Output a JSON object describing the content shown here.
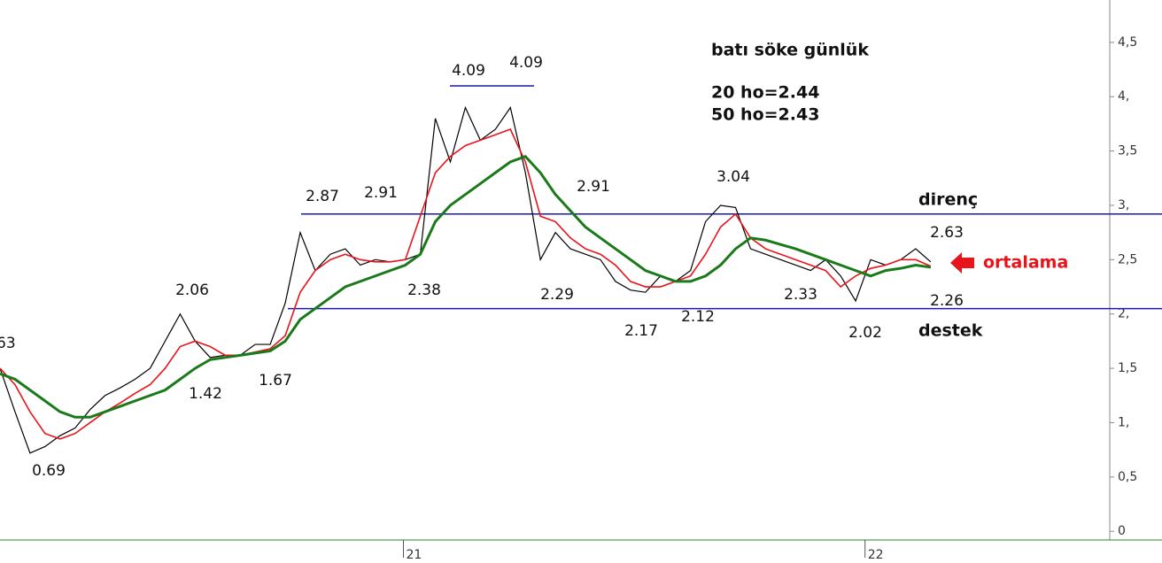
{
  "chart_data": {
    "type": "line",
    "title": "batı söke günlük",
    "subtitle": [
      "20 ho=2.44",
      "50 ho=2.43"
    ],
    "x": [
      0,
      8,
      16,
      24,
      32,
      40,
      48,
      56,
      64,
      72,
      80,
      88,
      96,
      104,
      112,
      120,
      128,
      136,
      144,
      152,
      160,
      168,
      176,
      184,
      192,
      200,
      208,
      216,
      224,
      232,
      240,
      248,
      256,
      264,
      272,
      280,
      288,
      296,
      304,
      312,
      320,
      328,
      336,
      344,
      352,
      360,
      368,
      376,
      384,
      392,
      400,
      408,
      416,
      424,
      432,
      440,
      448,
      456,
      464,
      472,
      480,
      488,
      496
    ],
    "series": [
      {
        "color": "#000000",
        "values": [
          1.5,
          1.1,
          0.72,
          0.78,
          0.88,
          0.95,
          1.12,
          1.25,
          1.32,
          1.4,
          1.5,
          1.75,
          2.0,
          1.75,
          1.6,
          1.62,
          1.62,
          1.72,
          1.72,
          2.1,
          2.75,
          2.4,
          2.55,
          2.6,
          2.45,
          2.5,
          2.48,
          2.5,
          2.55,
          3.8,
          3.4,
          3.9,
          3.6,
          3.7,
          3.9,
          3.3,
          2.5,
          2.75,
          2.6,
          2.55,
          2.5,
          2.3,
          2.22,
          2.2,
          2.35,
          2.3,
          2.4,
          2.85,
          3.0,
          2.98,
          2.6,
          2.55,
          2.5,
          2.45,
          2.4,
          2.5,
          2.35,
          2.12,
          2.5,
          2.45,
          2.5,
          2.6,
          2.48
        ]
      },
      {
        "color": "#e8141b",
        "values": [
          1.5,
          1.35,
          1.1,
          0.9,
          0.85,
          0.9,
          1.0,
          1.1,
          1.18,
          1.27,
          1.35,
          1.5,
          1.7,
          1.75,
          1.7,
          1.62,
          1.62,
          1.65,
          1.68,
          1.8,
          2.2,
          2.4,
          2.5,
          2.55,
          2.5,
          2.48,
          2.48,
          2.5,
          2.9,
          3.3,
          3.45,
          3.55,
          3.6,
          3.65,
          3.7,
          3.4,
          2.9,
          2.85,
          2.7,
          2.6,
          2.55,
          2.45,
          2.3,
          2.25,
          2.25,
          2.3,
          2.35,
          2.55,
          2.8,
          2.92,
          2.7,
          2.6,
          2.55,
          2.5,
          2.45,
          2.4,
          2.25,
          2.35,
          2.42,
          2.45,
          2.5,
          2.5,
          2.44
        ]
      },
      {
        "color": "#1a7a1a",
        "values": [
          1.45,
          1.4,
          1.3,
          1.2,
          1.1,
          1.05,
          1.05,
          1.1,
          1.15,
          1.2,
          1.25,
          1.3,
          1.4,
          1.5,
          1.58,
          1.6,
          1.62,
          1.64,
          1.66,
          1.75,
          1.95,
          2.05,
          2.15,
          2.25,
          2.3,
          2.35,
          2.4,
          2.45,
          2.55,
          2.85,
          3.0,
          3.1,
          3.2,
          3.3,
          3.4,
          3.45,
          3.3,
          3.1,
          2.95,
          2.8,
          2.7,
          2.6,
          2.5,
          2.4,
          2.35,
          2.3,
          2.3,
          2.35,
          2.45,
          2.6,
          2.7,
          2.68,
          2.64,
          2.6,
          2.55,
          2.5,
          2.45,
          2.4,
          2.35,
          2.4,
          2.42,
          2.45,
          2.43
        ]
      }
    ],
    "xlim": [
      0,
      590
    ],
    "xticks": [
      {
        "value": 215,
        "label": "21"
      },
      {
        "value": 461,
        "label": "22"
      }
    ],
    "ylim": [
      -0.08,
      4.89
    ],
    "yticks": [
      0,
      {
        "value": 0.5,
        "label": "0,5"
      },
      {
        "value": 1,
        "label": "1,"
      },
      {
        "value": 1.5,
        "label": "1,5"
      },
      {
        "value": 2,
        "label": "2,"
      },
      {
        "value": 2.5,
        "label": "2,5"
      },
      {
        "value": 3,
        "label": "3,"
      },
      {
        "value": 3.5,
        "label": "3,5"
      },
      {
        "value": 4,
        "label": "4,"
      },
      {
        "value": 4.5,
        "label": "4,5"
      }
    ],
    "levels": [
      {
        "name": "direnç",
        "value": 2.92
      },
      {
        "name": "destek",
        "value": 2.05
      }
    ],
    "annotations": [
      "63",
      "0.69",
      "2.06",
      "1.42",
      "1.67",
      "2.87",
      "2.91",
      "2.38",
      "4.09",
      "4.09",
      "2.29",
      "2.91",
      "2.17",
      "2.12",
      "3.04",
      "2.33",
      "2.02",
      "2.63",
      "2.26"
    ],
    "marker_label": "ortalama"
  }
}
